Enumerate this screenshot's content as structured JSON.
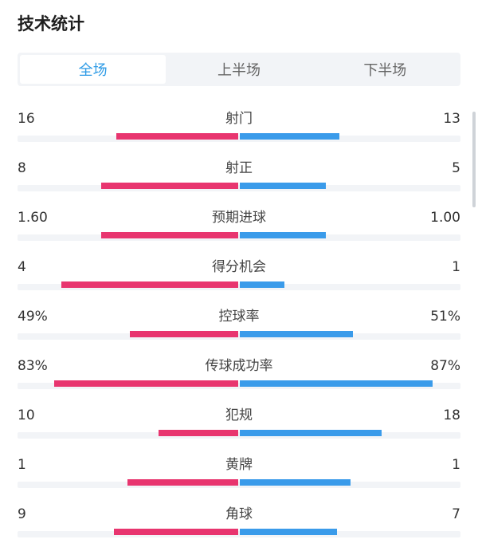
{
  "header": {
    "title": "技术统计"
  },
  "tabs": [
    {
      "label": "全场",
      "active": true
    },
    {
      "label": "上半场",
      "active": false
    },
    {
      "label": "下半场",
      "active": false
    }
  ],
  "colors": {
    "home": "#e8356f",
    "away": "#3a9bea",
    "active_tab": "#2e9be6"
  },
  "stats": [
    {
      "label": "射门",
      "home": "16",
      "away": "13",
      "home_ratio": 0.55,
      "away_ratio": 0.45
    },
    {
      "label": "射正",
      "home": "8",
      "away": "5",
      "home_ratio": 0.62,
      "away_ratio": 0.39
    },
    {
      "label": "预期进球",
      "home": "1.60",
      "away": "1.00",
      "home_ratio": 0.62,
      "away_ratio": 0.39
    },
    {
      "label": "得分机会",
      "home": "4",
      "away": "1",
      "home_ratio": 0.8,
      "away_ratio": 0.2
    },
    {
      "label": "控球率",
      "home": "49%",
      "away": "51%",
      "home_ratio": 0.49,
      "away_ratio": 0.51
    },
    {
      "label": "传球成功率",
      "home": "83%",
      "away": "87%",
      "home_ratio": 0.83,
      "away_ratio": 0.87
    },
    {
      "label": "犯规",
      "home": "10",
      "away": "18",
      "home_ratio": 0.36,
      "away_ratio": 0.64
    },
    {
      "label": "黄牌",
      "home": "1",
      "away": "1",
      "home_ratio": 0.5,
      "away_ratio": 0.5
    },
    {
      "label": "角球",
      "home": "9",
      "away": "7",
      "home_ratio": 0.56,
      "away_ratio": 0.44
    }
  ]
}
